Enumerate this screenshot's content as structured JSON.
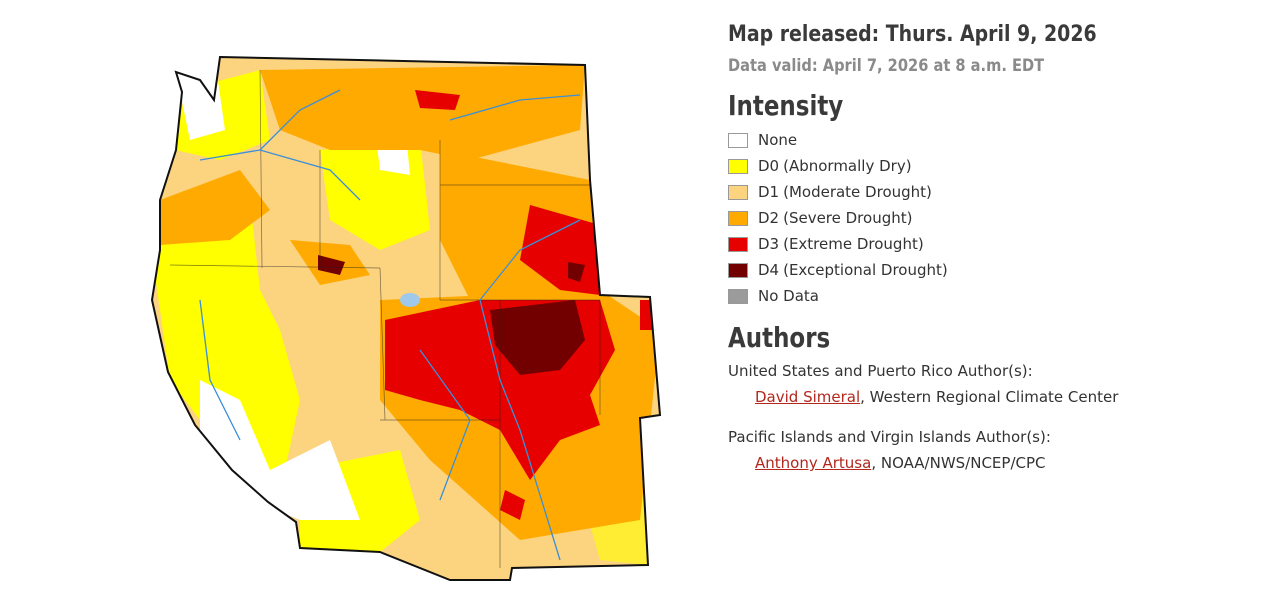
{
  "header": {
    "released": "Map released: Thurs. April 9, 2026",
    "valid": "Data valid: April 7, 2026 at 8 a.m. EDT"
  },
  "legend": {
    "title": "Intensity",
    "items": [
      {
        "code": "None",
        "color": "#ffffff"
      },
      {
        "code": "D0",
        "description": "(Abnormally Dry)",
        "color": "#ffff00"
      },
      {
        "code": "D1",
        "description": "(Moderate Drought)",
        "color": "#fcd37f"
      },
      {
        "code": "D2",
        "description": "(Severe Drought)",
        "color": "#ffaa00"
      },
      {
        "code": "D3",
        "description": "(Extreme Drought)",
        "color": "#e60000"
      },
      {
        "code": "D4",
        "description": "(Exceptional Drought)",
        "color": "#730000"
      },
      {
        "code": "No Data",
        "color": "#9b9b9b"
      }
    ]
  },
  "authors": {
    "title": "Authors",
    "groups": [
      {
        "heading": "United States and Puerto Rico Author(s):",
        "name": "David Simeral",
        "affiliation": ", Western Regional Climate Center"
      },
      {
        "heading": "Pacific Islands and Virgin Islands Author(s):",
        "name": "Anthony Artusa",
        "affiliation": ", NOAA/NWS/NCEP/CPC"
      }
    ]
  }
}
